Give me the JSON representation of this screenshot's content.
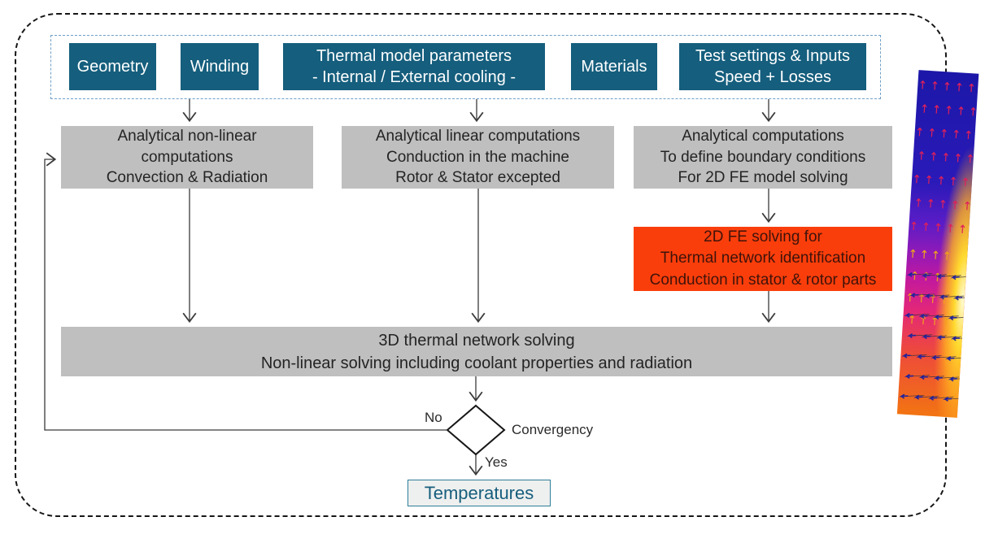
{
  "colors": {
    "teal": "#155E7D",
    "gray_box": "#BFBFBF",
    "orange": "#FA3E0B",
    "inner_border": "#6F9FC8",
    "temp_border": "#2E7D98",
    "temp_text": "#175E7D"
  },
  "input_row": {
    "boxes": [
      {
        "lines": [
          "Geometry"
        ]
      },
      {
        "lines": [
          "Winding"
        ]
      },
      {
        "lines": [
          "Thermal model parameters",
          "- Internal / External cooling -"
        ]
      },
      {
        "lines": [
          "Materials"
        ]
      },
      {
        "lines": [
          "Test settings & Inputs",
          "Speed + Losses"
        ]
      }
    ]
  },
  "process_row": {
    "boxes": [
      {
        "lines": [
          "Analytical non-linear",
          "computations",
          "Convection & Radiation"
        ]
      },
      {
        "lines": [
          "Analytical linear computations",
          "Conduction in the machine",
          "Rotor & Stator excepted"
        ]
      },
      {
        "lines": [
          "Analytical computations",
          "To define boundary conditions",
          "For 2D FE model solving"
        ]
      }
    ]
  },
  "fe_box": {
    "lines": [
      "2D FE solving for",
      "Thermal network identification",
      "Conduction in stator & rotor parts"
    ]
  },
  "solver_box": {
    "lines": [
      "3D thermal network solving",
      "Non-linear solving including coolant properties and radiation"
    ]
  },
  "decision": {
    "label": "Convergency",
    "no_label": "No",
    "yes_label": "Yes"
  },
  "output_box": {
    "label": "Temperatures"
  },
  "icons": {
    "fe_plot": "fe-thermal-simulation-heatmap"
  }
}
